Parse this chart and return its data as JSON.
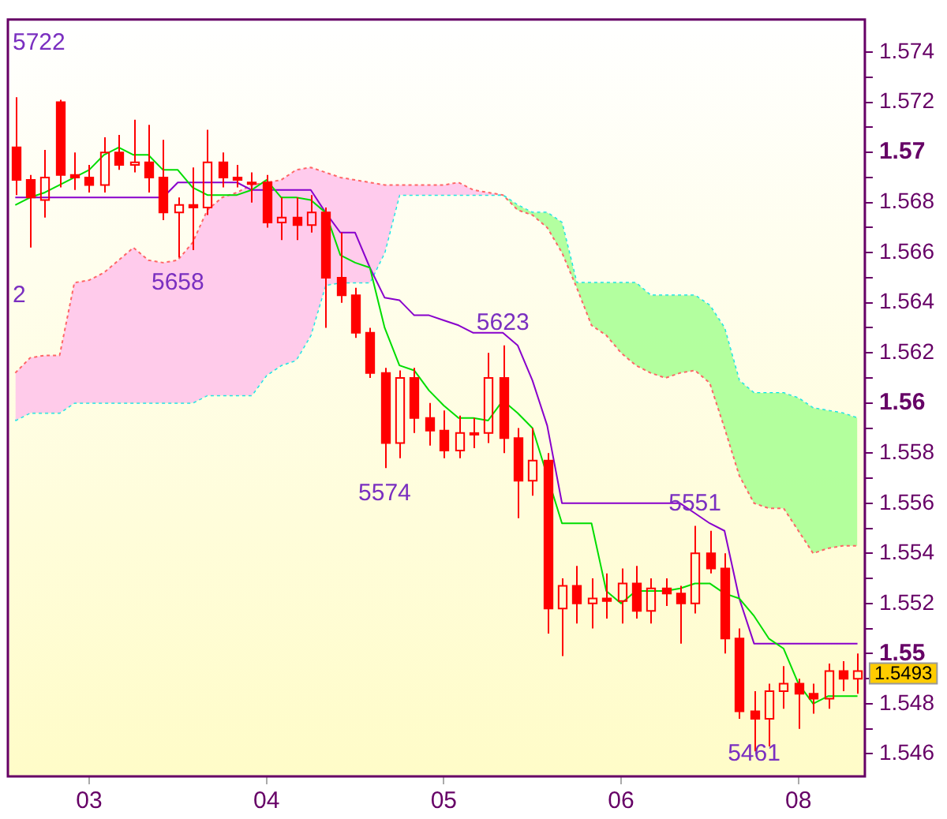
{
  "chart_data": {
    "type": "candlestick",
    "color": "#ff0000",
    "categories": [
      null,
      null,
      null,
      null,
      null,
      "03",
      null,
      null,
      null,
      null,
      null,
      null,
      null,
      null,
      null,
      null,
      null,
      "04",
      null,
      null,
      null,
      null,
      null,
      null,
      null,
      null,
      null,
      null,
      null,
      "05",
      null,
      null,
      null,
      null,
      null,
      null,
      null,
      null,
      null,
      null,
      null,
      "06",
      null,
      null,
      null,
      null,
      null,
      null,
      null,
      null,
      null,
      null,
      null,
      "08",
      null,
      null,
      null,
      null
    ],
    "ohlc": [
      [
        1.5702,
        1.5722,
        1.5683,
        1.5689
      ],
      [
        1.5689,
        1.5691,
        1.5662,
        1.5682
      ],
      [
        1.5681,
        1.5701,
        1.5674,
        1.569
      ],
      [
        1.572,
        1.5721,
        1.5686,
        1.5691
      ],
      [
        1.5691,
        1.57,
        1.5685,
        1.569
      ],
      [
        1.569,
        1.5695,
        1.5684,
        1.5687
      ],
      [
        1.5687,
        1.5706,
        1.5684,
        1.57
      ],
      [
        1.57,
        1.5707,
        1.5693,
        1.5695
      ],
      [
        1.5695,
        1.5713,
        1.5692,
        1.5696
      ],
      [
        1.5696,
        1.5711,
        1.5684,
        1.569
      ],
      [
        1.569,
        1.5705,
        1.5673,
        1.5676
      ],
      [
        1.5676,
        1.5682,
        1.5658,
        1.5679
      ],
      [
        1.5679,
        1.5694,
        1.5661,
        1.5678
      ],
      [
        1.5678,
        1.5709,
        1.5675,
        1.5696
      ],
      [
        1.5696,
        1.57,
        1.5686,
        1.569
      ],
      [
        1.569,
        1.5695,
        1.5686,
        1.5689
      ],
      [
        1.5688,
        1.5692,
        1.568,
        1.5688
      ],
      [
        1.5688,
        1.5691,
        1.567,
        1.5672
      ],
      [
        1.5672,
        1.5682,
        1.5665,
        1.5674
      ],
      [
        1.5674,
        1.5682,
        1.5665,
        1.5671
      ],
      [
        1.5671,
        1.5683,
        1.5668,
        1.5676
      ],
      [
        1.5676,
        1.5678,
        1.563,
        1.565
      ],
      [
        1.565,
        1.5668,
        1.564,
        1.5643
      ],
      [
        1.5643,
        1.5646,
        1.5626,
        1.5628
      ],
      [
        1.5628,
        1.563,
        1.561,
        1.5612
      ],
      [
        1.5612,
        1.5614,
        1.5574,
        1.5584
      ],
      [
        1.5584,
        1.5613,
        1.5578,
        1.561
      ],
      [
        1.561,
        1.5614,
        1.5588,
        1.5594
      ],
      [
        1.5594,
        1.56,
        1.5583,
        1.5589
      ],
      [
        1.5589,
        1.5597,
        1.5578,
        1.5581
      ],
      [
        1.5581,
        1.5595,
        1.5578,
        1.5588
      ],
      [
        1.5588,
        1.5594,
        1.5582,
        1.5588
      ],
      [
        1.5588,
        1.562,
        1.5584,
        1.561
      ],
      [
        1.561,
        1.5623,
        1.558,
        1.5586
      ],
      [
        1.5586,
        1.559,
        1.5554,
        1.5569
      ],
      [
        1.5569,
        1.559,
        1.5563,
        1.5577
      ],
      [
        1.5577,
        1.558,
        1.5508,
        1.5518
      ],
      [
        1.5518,
        1.553,
        1.5499,
        1.5527
      ],
      [
        1.5527,
        1.5535,
        1.5512,
        1.552
      ],
      [
        1.552,
        1.553,
        1.551,
        1.5522
      ],
      [
        1.5522,
        1.5532,
        1.5514,
        1.5521
      ],
      [
        1.5521,
        1.5534,
        1.5512,
        1.5528
      ],
      [
        1.5528,
        1.5535,
        1.5514,
        1.5517
      ],
      [
        1.5517,
        1.553,
        1.5512,
        1.5526
      ],
      [
        1.5526,
        1.553,
        1.5519,
        1.5524
      ],
      [
        1.5524,
        1.5527,
        1.5504,
        1.552
      ],
      [
        1.552,
        1.5551,
        1.5516,
        1.554
      ],
      [
        1.554,
        1.5549,
        1.5532,
        1.5534
      ],
      [
        1.5534,
        1.554,
        1.55,
        1.5506
      ],
      [
        1.5506,
        1.551,
        1.5474,
        1.5477
      ],
      [
        1.5477,
        1.5485,
        1.5461,
        1.5474
      ],
      [
        1.5474,
        1.5488,
        1.5463,
        1.5485
      ],
      [
        1.5485,
        1.5495,
        1.5478,
        1.5488
      ],
      [
        1.5488,
        1.549,
        1.547,
        1.5484
      ],
      [
        1.5484,
        1.5488,
        1.5476,
        1.5482
      ],
      [
        1.5482,
        1.5496,
        1.5478,
        1.5493
      ],
      [
        1.5493,
        1.5497,
        1.5485,
        1.549
      ],
      [
        1.549,
        1.55,
        1.5484,
        1.5493
      ]
    ],
    "series": [
      {
        "type": "line",
        "color": "#00dd00",
        "values": [
          1.5679,
          1.5682,
          1.5684,
          1.5687,
          1.569,
          1.5693,
          1.5699,
          1.5702,
          1.5699,
          1.5699,
          1.5693,
          1.5693,
          1.5686,
          1.5683,
          1.5683,
          1.5683,
          1.5685,
          1.5689,
          1.5682,
          1.5682,
          1.5681,
          1.5676,
          1.5659,
          1.5656,
          1.5654,
          1.563,
          1.5615,
          1.5613,
          1.5605,
          1.5599,
          1.5594,
          1.5594,
          1.5593,
          1.5601,
          1.5596,
          1.559,
          null,
          1.5552,
          1.5552,
          1.5552,
          1.5525,
          1.552,
          1.5525,
          1.5525,
          1.5525,
          1.5526,
          1.5528,
          1.5528,
          1.5524,
          1.5522,
          1.5515,
          1.5506,
          1.5502,
          1.5488,
          1.548,
          1.5483,
          1.5483,
          1.5483
        ]
      },
      {
        "type": "line",
        "color": "#8800cc",
        "values": [
          1.5682,
          1.5682,
          1.5682,
          1.5682,
          1.5682,
          1.5682,
          1.5682,
          1.5682,
          1.5682,
          1.5682,
          1.5682,
          1.5688,
          1.5688,
          1.5688,
          1.5688,
          1.5688,
          1.5685,
          1.5685,
          1.5685,
          1.5685,
          1.5685,
          1.5676,
          1.5668,
          1.5668,
          1.5654,
          1.5642,
          1.5641,
          1.5635,
          1.5635,
          1.5633,
          1.5631,
          1.5628,
          1.5628,
          1.5628,
          1.5623,
          1.5609,
          1.5591,
          1.556,
          1.556,
          1.556,
          1.556,
          1.556,
          1.556,
          1.556,
          1.556,
          1.556,
          1.5556,
          1.5552,
          1.5549,
          1.5522,
          1.5504,
          1.5504,
          1.5504,
          1.5504,
          1.5504,
          1.5504,
          1.5504,
          1.5504
        ]
      },
      {
        "type": "line",
        "color": "#ff6666",
        "line_style": "dotted",
        "values": [
          1.5612,
          1.5618,
          1.5619,
          1.5619,
          1.5648,
          1.5649,
          1.5652,
          1.5657,
          1.5662,
          1.5657,
          1.5656,
          1.5657,
          1.5664,
          1.5677,
          1.5682,
          1.5684,
          1.5687,
          1.5688,
          1.5689,
          1.5693,
          1.5694,
          1.5692,
          1.569,
          1.5689,
          1.5688,
          1.5687,
          1.5687,
          1.5687,
          1.5687,
          1.5687,
          1.5688,
          1.5685,
          1.5684,
          1.5683,
          1.5677,
          1.5675,
          1.567,
          1.566,
          1.5646,
          1.5631,
          1.5627,
          1.562,
          1.5615,
          1.5612,
          1.561,
          1.5612,
          1.5613,
          1.5608,
          1.559,
          1.5571,
          1.556,
          1.5558,
          1.5558,
          1.5549,
          1.554,
          1.5542,
          1.5543,
          1.5543
        ]
      },
      {
        "type": "line",
        "color": "#00e5ee",
        "line_style": "dotted",
        "values": [
          1.5593,
          1.5596,
          1.5596,
          1.5596,
          1.56,
          1.56,
          1.56,
          1.56,
          1.56,
          1.56,
          1.56,
          1.56,
          1.56,
          1.5603,
          1.5603,
          1.5603,
          1.5603,
          1.5611,
          1.5615,
          1.5617,
          1.5627,
          1.5647,
          1.5648,
          1.5648,
          1.5648,
          1.566,
          1.5683,
          1.5683,
          1.5683,
          1.5683,
          1.5683,
          1.5683,
          1.5683,
          1.5683,
          1.5679,
          1.5676,
          1.5676,
          1.5672,
          1.5648,
          1.5648,
          1.5648,
          1.5648,
          1.5648,
          1.5643,
          1.5643,
          1.5643,
          1.5643,
          1.5639,
          1.563,
          1.5609,
          1.5604,
          1.5604,
          1.5604,
          1.5602,
          1.5598,
          1.5597,
          1.5596,
          1.5594
        ]
      }
    ],
    "ylim": [
      1.5451,
      1.5753
    ],
    "yticks": [
      1.546,
      {
        "value": 1.547,
        "label": null
      },
      1.548,
      {
        "value": 1.549,
        "label": null
      },
      1.55,
      {
        "value": 1.551,
        "label": null
      },
      1.552,
      {
        "value": 1.553,
        "label": null
      },
      1.554,
      {
        "value": 1.555,
        "label": null
      },
      1.556,
      {
        "value": 1.557,
        "label": null
      },
      1.558,
      {
        "value": 1.559,
        "label": null
      },
      1.56,
      {
        "value": 1.561,
        "label": null
      },
      1.562,
      {
        "value": 1.563,
        "label": null
      },
      1.564,
      {
        "value": 1.565,
        "label": null
      },
      1.566,
      {
        "value": 1.567,
        "label": null
      },
      1.568,
      {
        "value": 1.569,
        "label": null
      },
      1.57,
      {
        "value": 1.571,
        "label": null
      },
      1.572,
      {
        "value": 1.573,
        "label": null
      },
      1.574
    ],
    "annotations": [
      "5722",
      {
        "text": "5658",
        "y": 1.5658
      },
      {
        "text": "5623",
        "y": 1.5623
      },
      {
        "text": "5574",
        "y": 1.5574
      },
      {
        "text": "5551",
        "y": 1.5551
      },
      {
        "text": "5461",
        "y": 1.5461
      },
      "2",
      "1.5493"
    ],
    "legend": false,
    "grid": false
  }
}
